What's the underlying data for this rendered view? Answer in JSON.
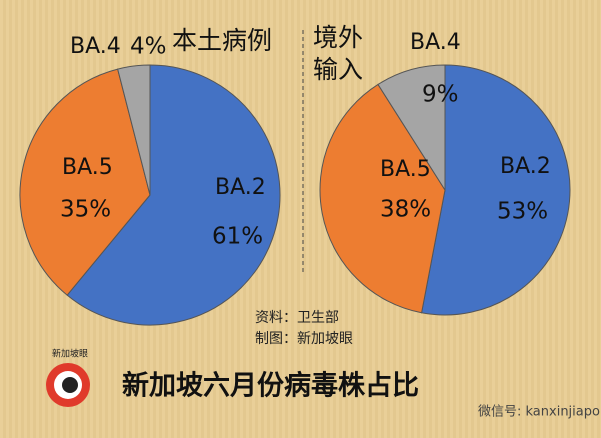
{
  "chart_data": [
    {
      "type": "pie",
      "title": "本土病例",
      "categories": [
        "BA.2",
        "BA.5",
        "BA.4"
      ],
      "values": [
        61,
        35,
        4
      ],
      "value_labels": [
        "61%",
        "35%",
        "4%"
      ],
      "colors": [
        "#4472c4",
        "#ed7d31",
        "#a5a5a5"
      ]
    },
    {
      "type": "pie",
      "title": "境外输入",
      "categories": [
        "BA.2",
        "BA.5",
        "BA.4"
      ],
      "values": [
        53,
        38,
        9
      ],
      "value_labels": [
        "53%",
        "38%",
        "9%"
      ],
      "colors": [
        "#4472c4",
        "#ed7d31",
        "#a5a5a5"
      ]
    }
  ],
  "footer": {
    "title": "新加坡六月份病毒株占比",
    "source": "资料：卫生部",
    "made_by": "制图：新加坡眼",
    "logo": "新加坡眼",
    "wechat": "微信号: kanxinjiapo"
  }
}
